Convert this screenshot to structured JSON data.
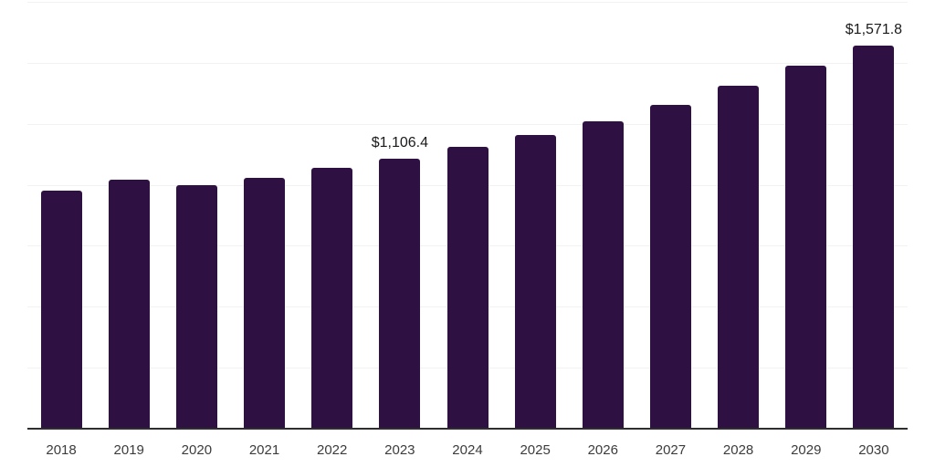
{
  "chart_data": {
    "type": "bar",
    "title": "",
    "xlabel": "",
    "ylabel": "",
    "categories": [
      "2018",
      "2019",
      "2020",
      "2021",
      "2022",
      "2023",
      "2024",
      "2025",
      "2026",
      "2027",
      "2028",
      "2029",
      "2030"
    ],
    "values": [
      976,
      1021,
      999,
      1029,
      1069,
      1106.4,
      1155,
      1204,
      1260,
      1327,
      1406,
      1490,
      1571.8
    ],
    "labeled_points": [
      {
        "category": "2023",
        "text": "$1,106.4"
      },
      {
        "category": "2030",
        "text": "$1,571.8"
      }
    ],
    "ylim": [
      0,
      1750
    ],
    "grid_step": 250,
    "grid": "on",
    "legend": "none",
    "colors": {
      "bar": "#2f1042",
      "axis_line": "#2e2e2e",
      "gridline": "#f2f2f2",
      "tick_label": "#3c3c3c",
      "data_label": "#1a1a1a",
      "background": "#ffffff"
    }
  }
}
